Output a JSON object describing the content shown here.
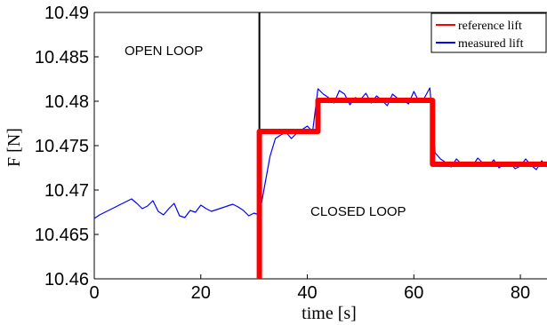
{
  "chart_data": {
    "type": "line",
    "title": "",
    "xlabel": "time [s]",
    "ylabel": "F [N]",
    "xlim": [
      0,
      85
    ],
    "ylim": [
      10.46,
      10.49
    ],
    "x_ticks": [
      "0",
      "20",
      "40",
      "60",
      "80"
    ],
    "y_ticks": [
      "10.46",
      "10.465",
      "10.47",
      "10.475",
      "10.48",
      "10.485",
      "10.49"
    ],
    "grid": false,
    "legend_position": "top-right",
    "annotations": [
      "OPEN LOOP",
      "CLOSED LOOP"
    ],
    "vertical_line_x": 31,
    "series": [
      {
        "name": "reference lift",
        "color": "#ff0000",
        "style": "step",
        "x": [
          31.0,
          31.0,
          42.0,
          42.0,
          63.5,
          63.5,
          85.0
        ],
        "y": [
          10.46,
          10.4766,
          10.4766,
          10.4801,
          10.4801,
          10.4729,
          10.4729
        ]
      },
      {
        "name": "measured lift",
        "color": "#0000ff",
        "style": "line",
        "x": [
          0,
          1,
          2,
          3,
          4,
          5,
          6,
          7,
          8,
          9,
          10,
          11,
          12,
          13,
          14,
          15,
          16,
          17,
          18,
          19,
          20,
          21,
          22,
          23,
          24,
          25,
          26,
          27,
          28,
          29,
          30,
          31,
          32,
          33,
          34,
          35,
          36,
          37,
          38,
          39,
          40,
          41,
          42,
          43,
          44,
          45,
          46,
          47,
          48,
          49,
          50,
          51,
          52,
          53,
          54,
          55,
          56,
          57,
          58,
          59,
          60,
          61,
          62,
          63,
          64,
          65,
          66,
          67,
          68,
          69,
          70,
          71,
          72,
          73,
          74,
          75,
          76,
          77,
          78,
          79,
          80,
          81,
          82,
          83,
          84,
          85
        ],
        "y": [
          10.4668,
          10.4672,
          10.4675,
          10.4678,
          10.4681,
          10.4684,
          10.4687,
          10.469,
          10.4685,
          10.4679,
          10.4682,
          10.4688,
          10.4676,
          10.4672,
          10.4679,
          10.4685,
          10.4671,
          10.4669,
          10.4677,
          10.4675,
          10.4683,
          10.4679,
          10.4676,
          10.4678,
          10.468,
          10.4682,
          10.4684,
          10.4681,
          10.4677,
          10.4671,
          10.4674,
          10.4672,
          10.4705,
          10.4738,
          10.4758,
          10.4762,
          10.4765,
          10.4758,
          10.4764,
          10.4768,
          10.4772,
          10.4766,
          10.4814,
          10.4808,
          10.4804,
          10.4798,
          10.4812,
          10.4808,
          10.4796,
          10.4804,
          10.4802,
          10.4809,
          10.4798,
          10.4806,
          10.4801,
          10.4795,
          10.4808,
          10.4803,
          10.4801,
          10.4797,
          10.4811,
          10.4799,
          10.4804,
          10.4815,
          10.4742,
          10.4735,
          10.4731,
          10.4726,
          10.4735,
          10.4729,
          10.4731,
          10.4727,
          10.4736,
          10.473,
          10.4727,
          10.4734,
          10.4725,
          10.473,
          10.4731,
          10.4724,
          10.4727,
          10.4735,
          10.4728,
          10.4723,
          10.4733,
          10.4726
        ]
      }
    ]
  }
}
